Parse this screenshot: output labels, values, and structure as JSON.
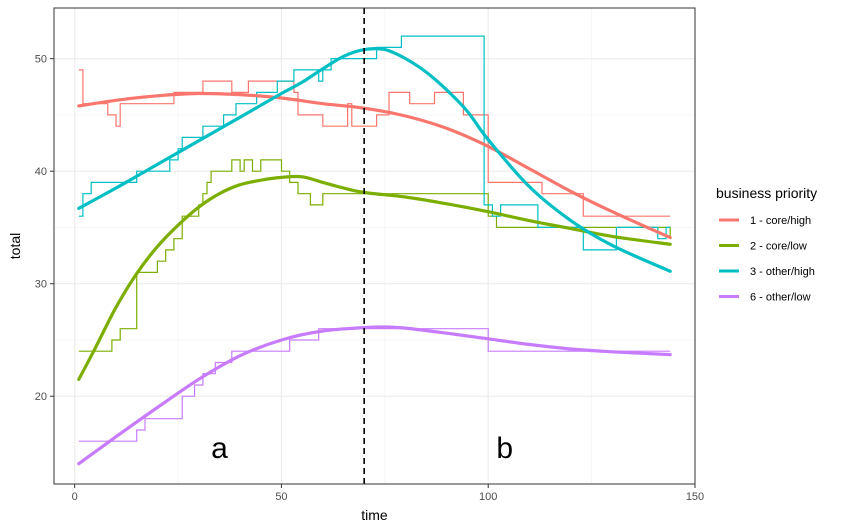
{
  "chart_data": {
    "type": "line",
    "xlabel": "time",
    "ylabel": "total",
    "xlim": [
      -5,
      150
    ],
    "ylim": [
      12.2,
      54.5
    ],
    "x_ticks": [
      0,
      50,
      100,
      150
    ],
    "y_ticks": [
      20,
      30,
      40,
      50
    ],
    "grid": true,
    "legend_title": "business priority",
    "legend_position": "right",
    "vline": {
      "x": 70,
      "style": "dashed"
    },
    "annotations": [
      {
        "text": "a",
        "x": 35,
        "y": 14.5
      },
      {
        "text": "b",
        "x": 104,
        "y": 14.5
      }
    ],
    "series": [
      {
        "name": "1 - core/high",
        "color": "#F8766D",
        "step": [
          [
            1,
            49
          ],
          [
            2,
            49
          ],
          [
            2,
            46
          ],
          [
            8,
            46
          ],
          [
            8,
            45
          ],
          [
            10,
            45
          ],
          [
            10,
            44
          ],
          [
            11,
            44
          ],
          [
            11,
            46
          ],
          [
            24,
            46
          ],
          [
            24,
            47
          ],
          [
            31,
            47
          ],
          [
            31,
            48
          ],
          [
            38,
            48
          ],
          [
            38,
            47
          ],
          [
            42,
            47
          ],
          [
            42,
            48
          ],
          [
            53,
            48
          ],
          [
            53,
            47
          ],
          [
            54,
            47
          ],
          [
            54,
            45
          ],
          [
            60,
            45
          ],
          [
            60,
            44
          ],
          [
            66,
            44
          ],
          [
            66,
            46
          ],
          [
            67,
            46
          ],
          [
            67,
            44
          ],
          [
            73,
            44
          ],
          [
            73,
            45
          ],
          [
            76,
            45
          ],
          [
            76,
            47
          ],
          [
            81,
            47
          ],
          [
            81,
            46
          ],
          [
            87,
            46
          ],
          [
            87,
            47
          ],
          [
            94,
            47
          ],
          [
            94,
            45
          ],
          [
            100,
            45
          ],
          [
            100,
            39
          ],
          [
            113,
            39
          ],
          [
            113,
            38
          ],
          [
            123,
            38
          ],
          [
            123,
            36
          ],
          [
            144,
            36
          ]
        ],
        "smooth": [
          [
            1,
            45.8
          ],
          [
            10,
            46.3
          ],
          [
            20,
            46.7
          ],
          [
            30,
            46.9
          ],
          [
            40,
            46.8
          ],
          [
            50,
            46.5
          ],
          [
            60,
            46.0
          ],
          [
            70,
            45.6
          ],
          [
            80,
            44.9
          ],
          [
            90,
            43.8
          ],
          [
            100,
            42.2
          ],
          [
            110,
            40.2
          ],
          [
            120,
            38.2
          ],
          [
            130,
            36.4
          ],
          [
            144,
            34.1
          ]
        ]
      },
      {
        "name": "2 - core/low",
        "color": "#7CAE00",
        "step": [
          [
            1,
            24
          ],
          [
            9,
            24
          ],
          [
            9,
            25
          ],
          [
            11,
            25
          ],
          [
            11,
            26
          ],
          [
            15,
            26
          ],
          [
            15,
            31
          ],
          [
            20,
            31
          ],
          [
            20,
            32
          ],
          [
            22,
            32
          ],
          [
            22,
            33
          ],
          [
            24,
            33
          ],
          [
            24,
            34
          ],
          [
            26,
            34
          ],
          [
            26,
            36
          ],
          [
            30,
            36
          ],
          [
            30,
            37
          ],
          [
            31,
            37
          ],
          [
            31,
            38
          ],
          [
            32,
            38
          ],
          [
            32,
            39
          ],
          [
            33,
            39
          ],
          [
            33,
            40
          ],
          [
            38,
            40
          ],
          [
            38,
            41
          ],
          [
            40,
            41
          ],
          [
            40,
            40
          ],
          [
            41,
            40
          ],
          [
            41,
            41
          ],
          [
            43,
            41
          ],
          [
            43,
            40
          ],
          [
            45,
            40
          ],
          [
            45,
            41
          ],
          [
            50,
            41
          ],
          [
            50,
            40
          ],
          [
            52,
            40
          ],
          [
            52,
            39
          ],
          [
            54,
            39
          ],
          [
            54,
            38
          ],
          [
            57,
            38
          ],
          [
            57,
            37
          ],
          [
            60,
            37
          ],
          [
            60,
            38
          ],
          [
            100,
            38
          ],
          [
            100,
            36
          ],
          [
            102,
            36
          ],
          [
            102,
            35
          ],
          [
            144,
            35
          ],
          [
            144,
            34
          ]
        ],
        "smooth": [
          [
            1,
            21.5
          ],
          [
            5,
            24.3
          ],
          [
            10,
            27.9
          ],
          [
            15,
            30.9
          ],
          [
            20,
            33.3
          ],
          [
            25,
            35.2
          ],
          [
            30,
            36.8
          ],
          [
            35,
            38.0
          ],
          [
            40,
            38.8
          ],
          [
            45,
            39.2
          ],
          [
            50,
            39.45
          ],
          [
            55,
            39.5
          ],
          [
            60,
            39.0
          ],
          [
            65,
            38.5
          ],
          [
            70,
            38.1
          ],
          [
            80,
            37.7
          ],
          [
            90,
            37.1
          ],
          [
            100,
            36.4
          ],
          [
            110,
            35.6
          ],
          [
            120,
            34.9
          ],
          [
            130,
            34.2
          ],
          [
            144,
            33.5
          ]
        ]
      },
      {
        "name": "3 - other/high",
        "color": "#00BFC4",
        "step": [
          [
            1,
            36
          ],
          [
            2,
            36
          ],
          [
            2,
            38
          ],
          [
            4,
            38
          ],
          [
            4,
            39
          ],
          [
            15,
            39
          ],
          [
            15,
            40
          ],
          [
            23,
            40
          ],
          [
            23,
            41
          ],
          [
            25,
            41
          ],
          [
            25,
            42
          ],
          [
            26,
            42
          ],
          [
            26,
            43
          ],
          [
            31,
            43
          ],
          [
            31,
            44
          ],
          [
            36,
            44
          ],
          [
            36,
            45
          ],
          [
            39,
            45
          ],
          [
            39,
            46
          ],
          [
            44,
            46
          ],
          [
            44,
            47
          ],
          [
            49,
            47
          ],
          [
            49,
            48
          ],
          [
            53,
            48
          ],
          [
            53,
            49
          ],
          [
            59,
            49
          ],
          [
            59,
            48
          ],
          [
            60,
            48
          ],
          [
            60,
            49
          ],
          [
            62,
            49
          ],
          [
            62,
            50
          ],
          [
            73,
            50
          ],
          [
            73,
            51
          ],
          [
            79,
            51
          ],
          [
            79,
            52
          ],
          [
            99,
            52
          ],
          [
            99,
            37
          ],
          [
            101,
            37
          ],
          [
            101,
            36
          ],
          [
            103,
            36
          ],
          [
            103,
            37
          ],
          [
            112,
            37
          ],
          [
            112,
            35
          ],
          [
            123,
            35
          ],
          [
            123,
            33
          ],
          [
            131,
            33
          ],
          [
            131,
            35
          ],
          [
            141,
            35
          ],
          [
            141,
            34
          ],
          [
            143,
            34
          ],
          [
            143,
            35
          ],
          [
            144,
            35
          ]
        ],
        "smooth": [
          [
            1,
            36.7
          ],
          [
            10,
            38.5
          ],
          [
            20,
            40.6
          ],
          [
            30,
            42.7
          ],
          [
            40,
            44.8
          ],
          [
            50,
            46.9
          ],
          [
            55,
            47.9
          ],
          [
            60,
            49.1
          ],
          [
            65,
            50.2
          ],
          [
            70,
            50.8
          ],
          [
            75,
            50.8
          ],
          [
            80,
            50.0
          ],
          [
            85,
            48.8
          ],
          [
            90,
            47.2
          ],
          [
            95,
            45.3
          ],
          [
            100,
            42.8
          ],
          [
            110,
            38.6
          ],
          [
            120,
            35.6
          ],
          [
            130,
            33.4
          ],
          [
            144,
            31.1
          ]
        ]
      },
      {
        "name": "6 - other/low",
        "color": "#C77CFF",
        "step": [
          [
            1,
            16
          ],
          [
            15,
            16
          ],
          [
            15,
            17
          ],
          [
            17,
            17
          ],
          [
            17,
            18
          ],
          [
            26,
            18
          ],
          [
            26,
            20
          ],
          [
            29,
            20
          ],
          [
            29,
            21
          ],
          [
            31,
            21
          ],
          [
            31,
            22
          ],
          [
            34,
            22
          ],
          [
            34,
            23
          ],
          [
            38,
            23
          ],
          [
            38,
            24
          ],
          [
            52,
            24
          ],
          [
            52,
            25
          ],
          [
            59,
            25
          ],
          [
            59,
            26
          ],
          [
            100,
            26
          ],
          [
            100,
            24
          ],
          [
            144,
            24
          ]
        ],
        "smooth": [
          [
            1,
            14.0
          ],
          [
            10,
            16.4
          ],
          [
            20,
            19.0
          ],
          [
            30,
            21.5
          ],
          [
            40,
            23.6
          ],
          [
            50,
            25.0
          ],
          [
            60,
            25.8
          ],
          [
            70,
            26.1
          ],
          [
            75,
            26.15
          ],
          [
            80,
            26.05
          ],
          [
            90,
            25.6
          ],
          [
            100,
            25.1
          ],
          [
            110,
            24.6
          ],
          [
            120,
            24.2
          ],
          [
            130,
            23.95
          ],
          [
            144,
            23.7
          ]
        ]
      }
    ]
  }
}
